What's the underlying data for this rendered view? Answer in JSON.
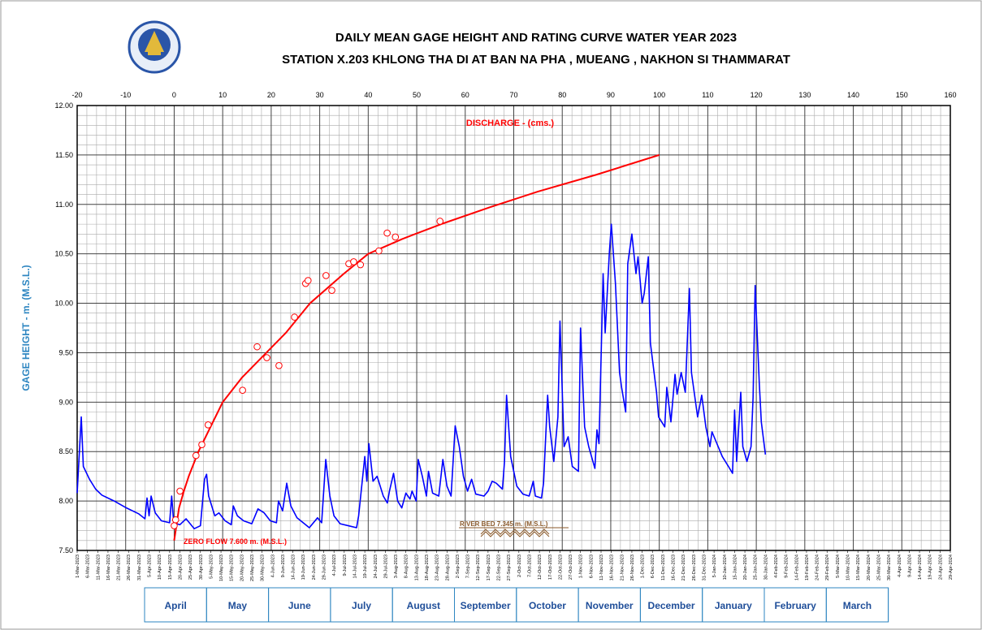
{
  "chart_data": {
    "type": "line",
    "title": [
      "DAILY  MEAN  GAGE  HEIGHT  AND  RATING  CURVE  WATER  YEAR  2023",
      "STATION  X.203  KHLONG  THA  DI   AT  BAN  NA  PHA  ,  MUEANG  ,  NAKHON  SI  THAMMARAT"
    ],
    "y_label": "GAGE  HEIGHT  -  m. (M.S.L.)",
    "annotations": [
      "DISCHARGE  -  (cms.)",
      "ZERO  FLOW  7.600  m.  (M.S.L.)",
      "RIVER  BED  7.345  m.  (M.S.L.)"
    ],
    "ylim": [
      7.5,
      12
    ],
    "yticks": [
      {
        "value": 7.5,
        "label": "7.50"
      },
      {
        "value": 8,
        "label": "8.00"
      },
      {
        "value": 8.5,
        "label": "8.50"
      },
      {
        "value": 9,
        "label": "9.00"
      },
      {
        "value": 9.5,
        "label": "9.50"
      },
      {
        "value": 10,
        "label": "10.00"
      },
      {
        "value": 10.5,
        "label": "10.50"
      },
      {
        "value": 11,
        "label": "11.00"
      },
      {
        "value": 11.5,
        "label": "11.50"
      },
      {
        "value": 12,
        "label": "12.00"
      }
    ],
    "grid": true,
    "discharge_axis": {
      "xlim": [
        -20,
        160
      ],
      "xticks": [
        -20,
        -10,
        0,
        10,
        20,
        30,
        40,
        50,
        60,
        70,
        80,
        90,
        100,
        110,
        120,
        130,
        140,
        150,
        160
      ]
    },
    "date_axis": {
      "xlim": [
        "2023-03-01",
        "2024-04-29"
      ],
      "xticks": [
        {
          "value": "2023-03-01",
          "label": "1-Mar-2023"
        },
        {
          "value": "2023-03-06",
          "label": "6-Mar-2023"
        },
        {
          "value": "2023-03-11",
          "label": "11-Mar-2023"
        },
        {
          "value": "2023-03-16",
          "label": "16-Mar-2023"
        },
        {
          "value": "2023-03-21",
          "label": "21-Mar-2023"
        },
        {
          "value": "2023-03-26",
          "label": "26-Mar-2023"
        },
        {
          "value": "2023-03-31",
          "label": "31-Mar-2023"
        },
        {
          "value": "2023-04-05",
          "label": "5-Apr-2023"
        },
        {
          "value": "2023-04-10",
          "label": "10-Apr-2023"
        },
        {
          "value": "2023-04-15",
          "label": "15-Apr-2023"
        },
        {
          "value": "2023-04-20",
          "label": "20-Apr-2023"
        },
        {
          "value": "2023-04-25",
          "label": "25-Apr-2023"
        },
        {
          "value": "2023-04-30",
          "label": "30-Apr-2023"
        },
        {
          "value": "2023-05-05",
          "label": "5-May-2023"
        },
        {
          "value": "2023-05-10",
          "label": "10-May-2023"
        },
        {
          "value": "2023-05-15",
          "label": "15-May-2023"
        },
        {
          "value": "2023-05-20",
          "label": "20-May-2023"
        },
        {
          "value": "2023-05-25",
          "label": "25-May-2023"
        },
        {
          "value": "2023-05-30",
          "label": "30-May-2023"
        },
        {
          "value": "2023-06-04",
          "label": "4-Jun-2023"
        },
        {
          "value": "2023-06-09",
          "label": "9-Jun-2023"
        },
        {
          "value": "2023-06-14",
          "label": "14-Jun-2023"
        },
        {
          "value": "2023-06-19",
          "label": "19-Jun-2023"
        },
        {
          "value": "2023-06-24",
          "label": "24-Jun-2023"
        },
        {
          "value": "2023-06-29",
          "label": "29-Jun-2023"
        },
        {
          "value": "2023-07-04",
          "label": "4-Jul-2023"
        },
        {
          "value": "2023-07-09",
          "label": "9-Jul-2023"
        },
        {
          "value": "2023-07-14",
          "label": "14-Jul-2023"
        },
        {
          "value": "2023-07-19",
          "label": "19-Jul-2023"
        },
        {
          "value": "2023-07-24",
          "label": "24-Jul-2023"
        },
        {
          "value": "2023-07-29",
          "label": "29-Jul-2023"
        },
        {
          "value": "2023-08-03",
          "label": "3-Aug-2023"
        },
        {
          "value": "2023-08-08",
          "label": "8-Aug-2023"
        },
        {
          "value": "2023-08-13",
          "label": "13-Aug-2023"
        },
        {
          "value": "2023-08-18",
          "label": "18-Aug-2023"
        },
        {
          "value": "2023-08-23",
          "label": "23-Aug-2023"
        },
        {
          "value": "2023-08-28",
          "label": "28-Aug-2023"
        },
        {
          "value": "2023-09-02",
          "label": "2-Sep-2023"
        },
        {
          "value": "2023-09-07",
          "label": "7-Sep-2023"
        },
        {
          "value": "2023-09-12",
          "label": "12-Sep-2023"
        },
        {
          "value": "2023-09-17",
          "label": "17-Sep-2023"
        },
        {
          "value": "2023-09-22",
          "label": "22-Sep-2023"
        },
        {
          "value": "2023-09-27",
          "label": "27-Sep-2023"
        },
        {
          "value": "2023-10-02",
          "label": "2-Oct-2023"
        },
        {
          "value": "2023-10-07",
          "label": "7-Oct-2023"
        },
        {
          "value": "2023-10-12",
          "label": "12-Oct-2023"
        },
        {
          "value": "2023-10-17",
          "label": "17-Oct-2023"
        },
        {
          "value": "2023-10-22",
          "label": "22-Oct-2023"
        },
        {
          "value": "2023-10-27",
          "label": "27-Oct-2023"
        },
        {
          "value": "2023-11-01",
          "label": "1-Nov-2023"
        },
        {
          "value": "2023-11-06",
          "label": "6-Nov-2023"
        },
        {
          "value": "2023-11-11",
          "label": "11-Nov-2023"
        },
        {
          "value": "2023-11-16",
          "label": "16-Nov-2023"
        },
        {
          "value": "2023-11-21",
          "label": "21-Nov-2023"
        },
        {
          "value": "2023-11-26",
          "label": "26-Nov-2023"
        },
        {
          "value": "2023-12-01",
          "label": "1-Dec-2023"
        },
        {
          "value": "2023-12-06",
          "label": "6-Dec-2023"
        },
        {
          "value": "2023-12-11",
          "label": "11-Dec-2023"
        },
        {
          "value": "2023-12-16",
          "label": "16-Dec-2023"
        },
        {
          "value": "2023-12-21",
          "label": "21-Dec-2023"
        },
        {
          "value": "2023-12-26",
          "label": "26-Dec-2023"
        },
        {
          "value": "2023-12-31",
          "label": "31-Dec-2023"
        },
        {
          "value": "2024-01-05",
          "label": "5-Jan-2024"
        },
        {
          "value": "2024-01-10",
          "label": "10-Jan-2024"
        },
        {
          "value": "2024-01-15",
          "label": "15-Jan-2024"
        },
        {
          "value": "2024-01-20",
          "label": "20-Jan-2024"
        },
        {
          "value": "2024-01-25",
          "label": "25-Jan-2024"
        },
        {
          "value": "2024-01-30",
          "label": "30-Jan-2024"
        },
        {
          "value": "2024-02-04",
          "label": "4-Feb-2024"
        },
        {
          "value": "2024-02-09",
          "label": "9-Feb-2024"
        },
        {
          "value": "2024-02-14",
          "label": "14-Feb-2024"
        },
        {
          "value": "2024-02-19",
          "label": "19-Feb-2024"
        },
        {
          "value": "2024-02-24",
          "label": "24-Feb-2024"
        },
        {
          "value": "2024-02-29",
          "label": "29-Feb-2024"
        },
        {
          "value": "2024-03-05",
          "label": "5-Mar-2024"
        },
        {
          "value": "2024-03-10",
          "label": "10-Mar-2024"
        },
        {
          "value": "2024-03-15",
          "label": "15-Mar-2024"
        },
        {
          "value": "2024-03-20",
          "label": "20-Mar-2024"
        },
        {
          "value": "2024-03-25",
          "label": "25-Mar-2024"
        },
        {
          "value": "2024-03-30",
          "label": "30-Mar-2024"
        },
        {
          "value": "2024-04-04",
          "label": "4-Apr-2024"
        },
        {
          "value": "2024-04-09",
          "label": "9-Apr-2024"
        },
        {
          "value": "2024-04-14",
          "label": "14-Apr-2024"
        },
        {
          "value": "2024-04-19",
          "label": "19-Apr-2024"
        },
        {
          "value": "2024-04-24",
          "label": "24-Apr-2024"
        },
        {
          "value": "2024-04-29",
          "label": "29-Apr-2024"
        }
      ]
    },
    "months": [
      "April",
      "May",
      "June",
      "July",
      "August",
      "September",
      "October",
      "November",
      "December",
      "January",
      "February",
      "March"
    ],
    "series": [
      {
        "type": "line",
        "xaxis": "date",
        "color": "#0000ff",
        "x": [
          "2023-03-01",
          "2023-03-03",
          "2023-03-04",
          "2023-03-07",
          "2023-03-10",
          "2023-03-13",
          "2023-03-19",
          "2023-03-25",
          "2023-03-31",
          "2023-04-03",
          "2023-04-04",
          "2023-04-05",
          "2023-04-06",
          "2023-04-08",
          "2023-04-11",
          "2023-04-15",
          "2023-04-16",
          "2023-04-17",
          "2023-04-20",
          "2023-04-23",
          "2023-04-27",
          "2023-04-30",
          "2023-05-02",
          "2023-05-03",
          "2023-05-04",
          "2023-05-07",
          "2023-05-09",
          "2023-05-12",
          "2023-05-15",
          "2023-05-16",
          "2023-05-18",
          "2023-05-21",
          "2023-05-25",
          "2023-05-28",
          "2023-05-31",
          "2023-06-03",
          "2023-06-06",
          "2023-06-07",
          "2023-06-09",
          "2023-06-11",
          "2023-06-13",
          "2023-06-16",
          "2023-06-19",
          "2023-06-22",
          "2023-06-26",
          "2023-06-28",
          "2023-06-30",
          "2023-07-02",
          "2023-07-04",
          "2023-07-07",
          "2023-07-11",
          "2023-07-15",
          "2023-07-16",
          "2023-07-19",
          "2023-07-20",
          "2023-07-21",
          "2023-07-23",
          "2023-07-25",
          "2023-07-28",
          "2023-07-30",
          "2023-07-31",
          "2023-08-02",
          "2023-08-04",
          "2023-08-06",
          "2023-08-08",
          "2023-08-10",
          "2023-08-11",
          "2023-08-13",
          "2023-08-14",
          "2023-08-16",
          "2023-08-18",
          "2023-08-19",
          "2023-08-21",
          "2023-08-24",
          "2023-08-26",
          "2023-08-28",
          "2023-08-30",
          "2023-09-01",
          "2023-09-03",
          "2023-09-05",
          "2023-09-07",
          "2023-09-09",
          "2023-09-11",
          "2023-09-15",
          "2023-09-17",
          "2023-09-19",
          "2023-09-21",
          "2023-09-24",
          "2023-09-25",
          "2023-09-26",
          "2023-09-28",
          "2023-10-01",
          "2023-10-04",
          "2023-10-07",
          "2023-10-09",
          "2023-10-10",
          "2023-10-13",
          "2023-10-14",
          "2023-10-16",
          "2023-10-17",
          "2023-10-19",
          "2023-10-21",
          "2023-10-22",
          "2023-10-24",
          "2023-10-26",
          "2023-10-28",
          "2023-10-31",
          "2023-11-01",
          "2023-11-03",
          "2023-11-05",
          "2023-11-08",
          "2023-11-09",
          "2023-11-10",
          "2023-11-12",
          "2023-11-13",
          "2023-11-15",
          "2023-11-16",
          "2023-11-18",
          "2023-11-20",
          "2023-11-21",
          "2023-11-23",
          "2023-11-24",
          "2023-11-26",
          "2023-11-28",
          "2023-11-29",
          "2023-12-01",
          "2023-12-02",
          "2023-12-04",
          "2023-12-05",
          "2023-12-08",
          "2023-12-09",
          "2023-12-12",
          "2023-12-13",
          "2023-12-15",
          "2023-12-17",
          "2023-12-18",
          "2023-12-20",
          "2023-12-22",
          "2023-12-24",
          "2023-12-25",
          "2023-12-28",
          "2023-12-30",
          "2024-01-01",
          "2024-01-03",
          "2024-01-04",
          "2024-01-07",
          "2024-01-09",
          "2024-01-12",
          "2024-01-14",
          "2024-01-15",
          "2024-01-16",
          "2024-01-18",
          "2024-01-19",
          "2024-01-21",
          "2024-01-23",
          "2024-01-24",
          "2024-01-25",
          "2024-01-27",
          "2024-01-28",
          "2024-01-30"
        ],
        "values": [
          8.08,
          8.85,
          8.35,
          8.22,
          8.12,
          8.06,
          8.0,
          7.93,
          7.87,
          7.82,
          8.03,
          7.85,
          8.05,
          7.88,
          7.8,
          7.78,
          8.05,
          7.78,
          7.76,
          7.82,
          7.72,
          7.75,
          8.22,
          8.27,
          8.05,
          7.85,
          7.88,
          7.8,
          7.76,
          7.95,
          7.85,
          7.8,
          7.77,
          7.92,
          7.88,
          7.8,
          7.78,
          8.0,
          7.9,
          8.18,
          7.95,
          7.83,
          7.78,
          7.73,
          7.83,
          7.78,
          8.42,
          8.05,
          7.85,
          7.77,
          7.75,
          7.73,
          7.85,
          8.45,
          8.2,
          8.58,
          8.2,
          8.25,
          8.05,
          7.98,
          8.1,
          8.28,
          8.0,
          7.93,
          8.08,
          8.02,
          8.1,
          8.0,
          8.42,
          8.25,
          8.05,
          8.3,
          8.08,
          8.05,
          8.42,
          8.15,
          8.05,
          8.76,
          8.55,
          8.25,
          8.1,
          8.22,
          8.07,
          8.05,
          8.1,
          8.2,
          8.18,
          8.12,
          8.4,
          9.07,
          8.45,
          8.15,
          8.07,
          8.05,
          8.2,
          8.05,
          8.03,
          8.18,
          9.07,
          8.75,
          8.4,
          8.85,
          9.82,
          8.55,
          8.65,
          8.35,
          8.3,
          9.75,
          8.75,
          8.55,
          8.33,
          8.72,
          8.58,
          10.3,
          9.7,
          10.5,
          10.8,
          10.2,
          9.3,
          9.15,
          8.9,
          10.4,
          10.7,
          10.3,
          10.47,
          10.0,
          10.1,
          10.47,
          9.6,
          9.1,
          8.85,
          8.75,
          9.15,
          8.8,
          9.28,
          9.08,
          9.3,
          9.1,
          10.15,
          9.3,
          8.85,
          9.07,
          8.75,
          8.55,
          8.7,
          8.55,
          8.45,
          8.35,
          8.28,
          8.92,
          8.4,
          9.1,
          8.55,
          8.4,
          8.55,
          9.05,
          10.18,
          9.2,
          8.8,
          8.47
        ]
      },
      {
        "type": "line",
        "xaxis": "discharge",
        "color": "#ff0000",
        "x": [
          0,
          1,
          2,
          3,
          5,
          7,
          10,
          14,
          19,
          23,
          28,
          35,
          40,
          47,
          55,
          65,
          75,
          87,
          100
        ],
        "values": [
          7.6,
          7.93,
          8.1,
          8.25,
          8.5,
          8.7,
          9.0,
          9.25,
          9.5,
          9.7,
          10.0,
          10.3,
          10.5,
          10.65,
          10.8,
          10.97,
          11.13,
          11.3,
          11.5
        ]
      },
      {
        "type": "scatter",
        "xaxis": "discharge",
        "color": "#ff0000",
        "x": [
          0,
          0.3,
          1.2,
          4.5,
          5.7,
          7.0,
          14.1,
          17.1,
          19.1,
          21.6,
          24.8,
          27.1,
          27.6,
          31.3,
          32.5,
          36.0,
          37.0,
          38.4,
          42.2,
          43.9,
          45.6,
          54.8
        ],
        "values": [
          7.75,
          7.81,
          8.1,
          8.46,
          8.57,
          8.77,
          9.12,
          9.56,
          9.45,
          9.37,
          9.86,
          10.2,
          10.23,
          10.28,
          10.13,
          10.4,
          10.42,
          10.39,
          10.53,
          10.71,
          10.67,
          10.83
        ]
      }
    ]
  }
}
